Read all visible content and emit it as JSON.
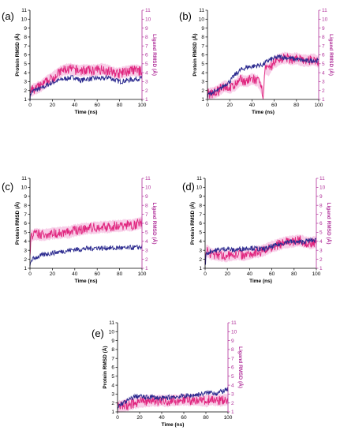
{
  "figure": {
    "series_colors": {
      "protein": "#2b2a8f",
      "ligand": "#e0267f",
      "ligand_band": "#f2a6d6"
    },
    "right_axis_color": "#b0309a"
  },
  "chart_data": [
    {
      "type": "line",
      "panel_label": "(a)",
      "xlabel": "Time (ns)",
      "ylabel": "Protein RMSD (Å)",
      "y2label": "Ligand RMSD (Å)",
      "xlim": [
        0,
        100
      ],
      "xticks": [
        0,
        20,
        40,
        60,
        80,
        100
      ],
      "ylim": [
        1,
        11
      ],
      "yticks": [
        1,
        2,
        3,
        4,
        5,
        6,
        7,
        8,
        9,
        10,
        11
      ],
      "y2lim": [
        1,
        11
      ],
      "y2ticks": [
        1,
        2,
        3,
        4,
        5,
        6,
        7,
        8,
        9,
        10,
        11
      ],
      "grid": false,
      "series": [
        {
          "axis": "left",
          "x": [
            0,
            1,
            5,
            10,
            15,
            20,
            25,
            30,
            35,
            40,
            45,
            50,
            55,
            60,
            65,
            70,
            75,
            80,
            85,
            90,
            95,
            100
          ],
          "values": [
            1.1,
            1.8,
            2.1,
            2.2,
            2.6,
            2.9,
            3.1,
            3.3,
            3.4,
            3.5,
            3.1,
            3.3,
            3.3,
            3.4,
            3.3,
            3.5,
            3.2,
            3.0,
            3.1,
            3.2,
            3.3,
            3.4
          ]
        },
        {
          "axis": "right",
          "x": [
            0,
            1,
            5,
            10,
            15,
            20,
            25,
            30,
            35,
            40,
            45,
            50,
            55,
            60,
            65,
            70,
            75,
            80,
            85,
            90,
            95,
            100
          ],
          "values": [
            1.8,
            2.0,
            2.2,
            2.5,
            3.0,
            3.4,
            3.9,
            4.3,
            4.4,
            4.3,
            4.2,
            4.3,
            4.2,
            4.3,
            4.4,
            4.2,
            4.0,
            3.9,
            4.1,
            4.2,
            4.3,
            4.1
          ]
        }
      ]
    },
    {
      "type": "line",
      "panel_label": "(b)",
      "xlabel": "Time (ns)",
      "ylabel": "Protein RMSD (Å)",
      "y2label": "Ligand RMSD (Å)",
      "xlim": [
        0,
        100
      ],
      "xticks": [
        0,
        20,
        40,
        60,
        80,
        100
      ],
      "ylim": [
        1,
        11
      ],
      "yticks": [
        1,
        2,
        3,
        4,
        5,
        6,
        7,
        8,
        9,
        10,
        11
      ],
      "y2lim": [
        1,
        11
      ],
      "y2ticks": [
        1,
        2,
        3,
        4,
        5,
        6,
        7,
        8,
        9,
        10,
        11
      ],
      "grid": false,
      "series": [
        {
          "axis": "left",
          "x": [
            0,
            1,
            5,
            10,
            15,
            20,
            25,
            30,
            35,
            40,
            45,
            50,
            55,
            60,
            65,
            70,
            75,
            80,
            85,
            90,
            95,
            100
          ],
          "values": [
            1.2,
            1.6,
            1.8,
            2.0,
            2.6,
            3.0,
            3.8,
            4.3,
            4.6,
            4.7,
            4.8,
            4.9,
            5.4,
            5.6,
            5.8,
            5.7,
            5.6,
            5.5,
            5.4,
            5.3,
            5.4,
            5.3
          ]
        },
        {
          "axis": "right",
          "x": [
            0,
            1,
            5,
            10,
            15,
            20,
            25,
            30,
            35,
            40,
            45,
            48,
            50,
            52,
            55,
            60,
            65,
            70,
            75,
            80,
            85,
            90,
            95,
            100
          ],
          "values": [
            1.8,
            1.6,
            1.7,
            2.0,
            2.5,
            2.3,
            2.6,
            3.2,
            3.0,
            3.3,
            3.1,
            2.4,
            1.6,
            4.5,
            4.3,
            5.2,
            5.5,
            5.7,
            5.5,
            5.6,
            5.4,
            5.3,
            5.5,
            5.2
          ]
        }
      ]
    },
    {
      "type": "line",
      "panel_label": "(c)",
      "xlabel": "Time (ns)",
      "ylabel": "Protein RMSD (Å)",
      "y2label": "Ligand RMSD (Å)",
      "xlim": [
        0,
        100
      ],
      "xticks": [
        0,
        20,
        40,
        60,
        80,
        100
      ],
      "ylim": [
        1,
        11
      ],
      "yticks": [
        1,
        2,
        3,
        4,
        5,
        6,
        7,
        8,
        9,
        10,
        11
      ],
      "y2lim": [
        1,
        11
      ],
      "y2ticks": [
        1,
        2,
        3,
        4,
        5,
        6,
        7,
        8,
        9,
        10,
        11
      ],
      "grid": false,
      "series": [
        {
          "axis": "left",
          "x": [
            0,
            1,
            5,
            10,
            15,
            20,
            25,
            30,
            35,
            40,
            45,
            50,
            55,
            60,
            65,
            70,
            75,
            80,
            85,
            90,
            95,
            100
          ],
          "values": [
            1.2,
            1.9,
            2.2,
            2.4,
            2.6,
            2.7,
            2.8,
            2.9,
            3.0,
            3.1,
            3.1,
            3.2,
            3.2,
            3.3,
            3.2,
            3.3,
            3.2,
            3.3,
            3.2,
            3.3,
            3.3,
            3.4
          ]
        },
        {
          "axis": "right",
          "x": [
            0,
            1,
            5,
            10,
            15,
            20,
            25,
            30,
            35,
            40,
            45,
            50,
            55,
            60,
            65,
            70,
            75,
            80,
            85,
            90,
            95,
            100
          ],
          "values": [
            2.5,
            4.6,
            4.8,
            4.7,
            4.8,
            4.9,
            4.9,
            5.0,
            5.0,
            5.2,
            5.3,
            5.4,
            5.5,
            5.5,
            5.6,
            5.6,
            5.7,
            5.7,
            5.8,
            5.8,
            5.9,
            6.1
          ]
        }
      ]
    },
    {
      "type": "line",
      "panel_label": "(d)",
      "xlabel": "Time (ns)",
      "ylabel": "Protein RMSD (Å)",
      "y2label": "Ligand RMSD (Å)",
      "xlim": [
        0,
        100
      ],
      "xticks": [
        0,
        20,
        40,
        60,
        80,
        100
      ],
      "ylim": [
        1,
        11
      ],
      "yticks": [
        1,
        2,
        3,
        4,
        5,
        6,
        7,
        8,
        9,
        10,
        11
      ],
      "y2lim": [
        1,
        11
      ],
      "y2ticks": [
        1,
        2,
        3,
        4,
        5,
        6,
        7,
        8,
        9,
        10,
        11
      ],
      "grid": false,
      "series": [
        {
          "axis": "left",
          "x": [
            0,
            1,
            5,
            10,
            15,
            20,
            25,
            30,
            35,
            40,
            45,
            50,
            55,
            60,
            65,
            70,
            75,
            80,
            85,
            90,
            95,
            100
          ],
          "values": [
            1.2,
            2.6,
            2.9,
            3.0,
            3.1,
            3.2,
            3.0,
            3.1,
            3.2,
            3.3,
            3.2,
            3.1,
            3.2,
            3.4,
            3.6,
            3.8,
            4.0,
            3.9,
            3.9,
            4.0,
            4.1,
            4.1
          ]
        },
        {
          "axis": "right",
          "x": [
            0,
            1,
            5,
            10,
            15,
            20,
            25,
            30,
            35,
            40,
            45,
            50,
            55,
            60,
            65,
            70,
            75,
            80,
            85,
            90,
            95,
            100
          ],
          "values": [
            1.8,
            3.0,
            2.6,
            2.5,
            2.4,
            2.4,
            2.5,
            2.6,
            2.5,
            2.6,
            2.8,
            2.9,
            3.1,
            3.4,
            3.6,
            3.8,
            3.9,
            4.0,
            4.1,
            3.9,
            3.8,
            3.9
          ]
        }
      ]
    },
    {
      "type": "line",
      "panel_label": "(e)",
      "xlabel": "Time (ns)",
      "ylabel": "Protein RMSD (Å)",
      "y2label": "Ligand RMSD (Å)",
      "xlim": [
        0,
        100
      ],
      "xticks": [
        0,
        20,
        40,
        60,
        80,
        100
      ],
      "ylim": [
        1,
        11
      ],
      "yticks": [
        1,
        2,
        3,
        4,
        5,
        6,
        7,
        8,
        9,
        10,
        11
      ],
      "y2lim": [
        1,
        11
      ],
      "y2ticks": [
        1,
        2,
        3,
        4,
        5,
        6,
        7,
        8,
        9,
        10,
        11
      ],
      "grid": false,
      "series": [
        {
          "axis": "left",
          "x": [
            0,
            1,
            5,
            10,
            15,
            20,
            25,
            30,
            35,
            40,
            45,
            50,
            55,
            60,
            65,
            70,
            75,
            80,
            85,
            90,
            95,
            100
          ],
          "values": [
            1.2,
            1.7,
            2.0,
            2.3,
            2.7,
            2.8,
            2.6,
            2.7,
            2.6,
            2.5,
            2.6,
            2.7,
            2.7,
            2.8,
            2.8,
            2.9,
            3.0,
            3.1,
            3.2,
            3.1,
            3.3,
            3.5
          ]
        },
        {
          "axis": "right",
          "x": [
            0,
            1,
            5,
            10,
            15,
            20,
            25,
            30,
            35,
            40,
            45,
            50,
            55,
            60,
            65,
            70,
            75,
            80,
            85,
            90,
            95,
            100
          ],
          "values": [
            1.5,
            1.6,
            1.7,
            1.8,
            2.0,
            2.1,
            2.2,
            2.3,
            2.2,
            2.3,
            2.2,
            2.3,
            2.3,
            2.4,
            2.3,
            2.4,
            2.3,
            2.2,
            2.4,
            2.3,
            2.3,
            2.4
          ]
        }
      ]
    }
  ]
}
